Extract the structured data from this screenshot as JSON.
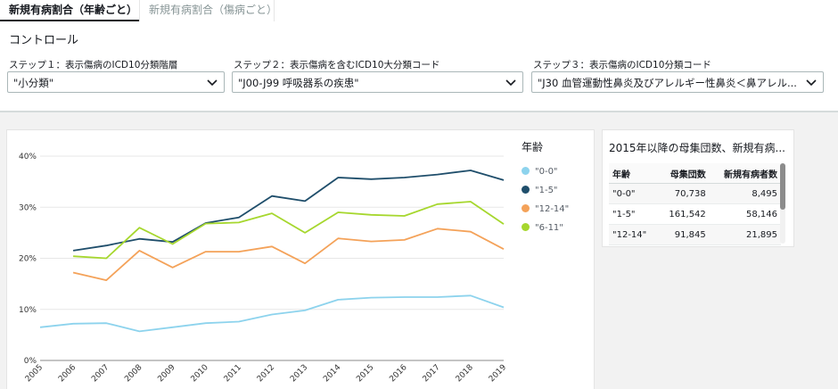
{
  "tabs": [
    {
      "label": "新規有病割合（年齢ごと）"
    },
    {
      "label": "新規有病割合（傷病ごと）"
    }
  ],
  "controls": {
    "title": "コントロール",
    "steps": [
      {
        "label": "ステップ１：表示傷病のICD10分類階層",
        "value": "\"小分類\""
      },
      {
        "label": "ステップ２：表示傷病を含むICD10大分類コード",
        "value": "\"J00-J99 呼吸器系の疾患\""
      },
      {
        "label": "ステップ３：表示傷病のICD10分類コード",
        "value": "\"J30 血管運動性鼻炎及びアレルギー性鼻炎＜鼻アレル..."
      }
    ]
  },
  "legend": {
    "title": "年齢",
    "items": [
      {
        "label": "\"0-0\"",
        "color": "#8dd3ed"
      },
      {
        "label": "\"1-5\"",
        "color": "#1f4e6b"
      },
      {
        "label": "\"12-14\"",
        "color": "#f4a259"
      },
      {
        "label": "\"6-11\"",
        "color": "#a6d72e"
      }
    ]
  },
  "chart_data": {
    "type": "line",
    "x": [
      "2005",
      "2006",
      "2007",
      "2008",
      "2009",
      "2010",
      "2011",
      "2012",
      "2013",
      "2014",
      "2015",
      "2016",
      "2017",
      "2018",
      "2019"
    ],
    "yticks": [
      "0%",
      "10%",
      "20%",
      "30%",
      "40%"
    ],
    "ylim": [
      0,
      40
    ],
    "xlabel": "",
    "ylabel": "",
    "grid": "horizontal",
    "legend_placement": "right",
    "series": [
      {
        "name": "\"0-0\"",
        "color": "#8dd3ed",
        "values": [
          6.5,
          7.2,
          7.3,
          5.7,
          6.5,
          7.3,
          7.6,
          9.0,
          9.8,
          11.9,
          12.3,
          12.4,
          12.4,
          12.7,
          10.4
        ]
      },
      {
        "name": "\"1-5\"",
        "color": "#1f4e6b",
        "values": [
          null,
          21.5,
          22.5,
          23.8,
          23.2,
          26.9,
          28.0,
          32.2,
          31.2,
          35.8,
          35.5,
          35.8,
          36.4,
          37.2,
          35.3
        ]
      },
      {
        "name": "\"12-14\"",
        "color": "#f4a259",
        "values": [
          null,
          17.2,
          15.7,
          21.5,
          18.2,
          21.3,
          21.3,
          22.3,
          19.0,
          23.9,
          23.3,
          23.6,
          25.8,
          25.2,
          21.8
        ]
      },
      {
        "name": "\"6-11\"",
        "color": "#a6d72e",
        "values": [
          null,
          20.4,
          20.0,
          26.0,
          22.8,
          26.8,
          27.0,
          28.8,
          25.0,
          29.0,
          28.5,
          28.3,
          30.6,
          31.1,
          26.7
        ]
      }
    ]
  },
  "table": {
    "title": "2015年以降の母集団数、新規有病...",
    "headers": [
      "年齢",
      "母集団数",
      "新規有病者数"
    ],
    "rows": [
      [
        "\"0-0\"",
        "70,738",
        "8,495"
      ],
      [
        "\"1-5\"",
        "161,542",
        "58,146"
      ],
      [
        "\"12-14\"",
        "91,845",
        "21,895"
      ]
    ]
  }
}
